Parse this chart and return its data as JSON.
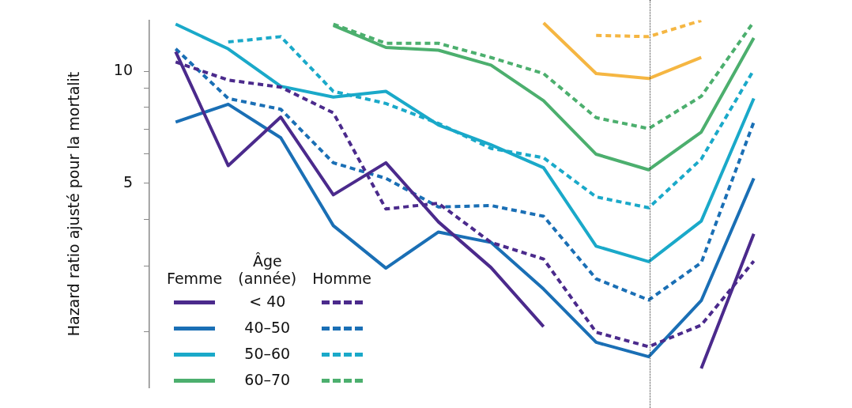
{
  "chart_data": {
    "type": "line",
    "ylabel": "Hazard ratio ajusté pour la mortalit",
    "legend_title": "Âge (année)",
    "annotations": [
      "Femme",
      "Homme"
    ],
    "categories": [
      null,
      null,
      null,
      null,
      null,
      null,
      null,
      null,
      null,
      null,
      null,
      null
    ],
    "log": "y",
    "ylim": [
      1.41,
      13.74
    ],
    "yticks": [
      {
        "value": 2,
        "label": null
      },
      {
        "value": 3,
        "label": null
      },
      {
        "value": 4,
        "label": null
      },
      5,
      {
        "value": 6,
        "label": null
      },
      {
        "value": 7,
        "label": null
      },
      {
        "value": 8,
        "label": null
      },
      {
        "value": 9,
        "label": null
      },
      10
    ],
    "grid": false,
    "legend": "bottom left",
    "marker": "none",
    "series": [
      {
        "name": "< 40",
        "color": "#4b2a8c",
        "line_style": "solid",
        "values": [
          11.3,
          5.58,
          7.54,
          4.66,
          5.68,
          3.94,
          2.97,
          2.06,
          null,
          null,
          1.59,
          3.66
        ]
      },
      {
        "color": "#4b2a8c",
        "line_style": "dashed",
        "values": [
          10.6,
          9.48,
          9.07,
          7.74,
          4.27,
          4.42,
          3.47,
          3.13,
          1.99,
          1.82,
          2.08,
          3.09
        ]
      },
      {
        "name": "40–50",
        "color": "#1a6fb5",
        "line_style": "solid",
        "values": [
          7.31,
          8.16,
          6.63,
          3.85,
          2.96,
          3.7,
          3.47,
          2.6,
          1.87,
          1.71,
          2.42,
          5.16
        ]
      },
      {
        "color": "#1a6fb5",
        "line_style": "dashed",
        "values": [
          11.5,
          8.46,
          7.91,
          5.68,
          5.16,
          4.32,
          4.36,
          4.08,
          2.77,
          2.43,
          3.06,
          7.31
        ]
      },
      {
        "name": "50–60",
        "color": "#1aa9c9",
        "line_style": "solid",
        "values": [
          13.4,
          11.5,
          9.12,
          8.53,
          8.84,
          7.18,
          6.35,
          5.51,
          3.39,
          3.08,
          3.96,
          8.46
        ]
      },
      {
        "color": "#1aa9c9",
        "line_style": "dashed",
        "values": [
          null,
          12.0,
          12.4,
          8.84,
          8.2,
          7.25,
          6.21,
          5.86,
          4.6,
          4.3,
          5.81,
          10.1
        ]
      },
      {
        "name": "60–70",
        "color": "#4caf6e",
        "line_style": "solid",
        "values": [
          null,
          null,
          null,
          13.3,
          11.6,
          11.4,
          10.4,
          8.34,
          5.99,
          5.44,
          6.87,
          12.3
        ]
      },
      {
        "color": "#4caf6e",
        "line_style": "dashed",
        "values": [
          null,
          null,
          null,
          13.4,
          11.9,
          11.9,
          10.9,
          9.87,
          7.51,
          7.02,
          8.57,
          13.6
        ]
      },
      {
        "color": "#f5b642",
        "line_style": "solid",
        "values": [
          null,
          null,
          null,
          null,
          null,
          null,
          null,
          13.5,
          9.87,
          9.57,
          10.9,
          null
        ]
      },
      {
        "color": "#f5b642",
        "line_style": "dashed",
        "values": [
          null,
          null,
          null,
          null,
          null,
          null,
          null,
          null,
          12.5,
          12.4,
          13.7,
          null
        ]
      }
    ]
  }
}
